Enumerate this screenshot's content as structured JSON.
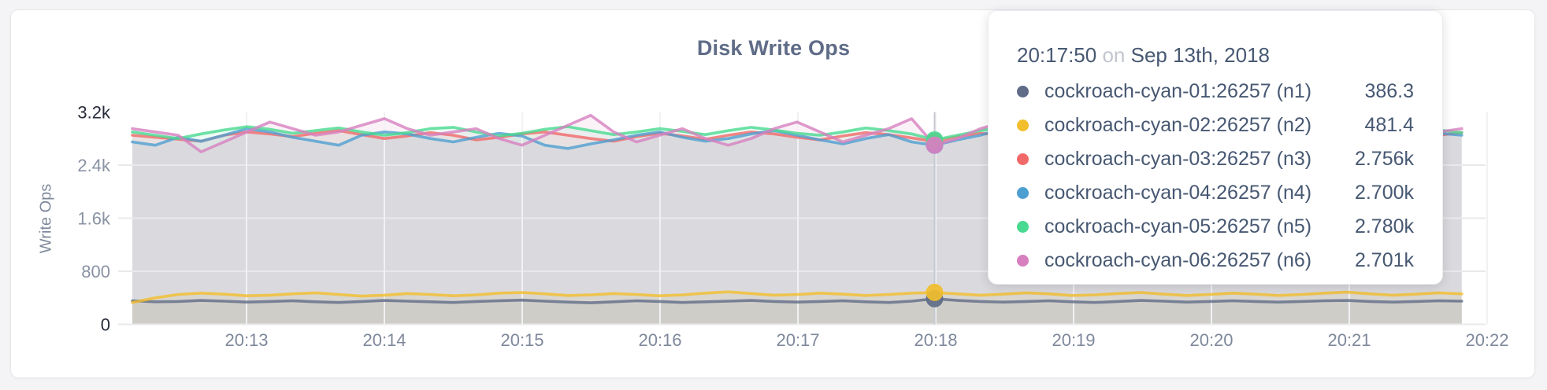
{
  "card": {
    "title": "Disk Write Ops"
  },
  "y_axis": {
    "title": "Write Ops"
  },
  "tooltip": {
    "time": "20:17:50",
    "connector": "on",
    "date": "Sep 13th, 2018",
    "rows": [
      {
        "label": "cockroach-cyan-01:26257 (n1)",
        "value": "386.3",
        "color": "#5F6C87"
      },
      {
        "label": "cockroach-cyan-02:26257 (n2)",
        "value": "481.4",
        "color": "#F2BE2C"
      },
      {
        "label": "cockroach-cyan-03:26257 (n3)",
        "value": "2.756k",
        "color": "#F16969"
      },
      {
        "label": "cockroach-cyan-04:26257 (n4)",
        "value": "2.700k",
        "color": "#4E9FD1"
      },
      {
        "label": "cockroach-cyan-05:26257 (n5)",
        "value": "2.780k",
        "color": "#49D990"
      },
      {
        "label": "cockroach-cyan-06:26257 (n6)",
        "value": "2.701k",
        "color": "#D77FBF"
      }
    ]
  },
  "chart_data": {
    "type": "line",
    "title": "Disk Write Ops",
    "xlabel": "",
    "ylabel": "Write Ops",
    "ylim": [
      0,
      3200
    ],
    "y_tick_values": [
      0,
      800,
      1600,
      2400,
      3200
    ],
    "y_ticks": [
      "0",
      "800",
      "1.6k",
      "2.4k",
      "3.2k"
    ],
    "x_ticks": [
      "20:13",
      "20:14",
      "20:15",
      "20:16",
      "20:17",
      "20:18",
      "20:19",
      "20:20",
      "20:21",
      "20:22"
    ],
    "sample_interval_seconds": 10,
    "grid": true,
    "legend_position": "tooltip",
    "hover_index": 35,
    "hover_time": "20:17:50",
    "line_opacity": 0.8,
    "fill_opacity": 0.1,
    "series": [
      {
        "name": "cockroach-cyan-01:26257 (n1)",
        "color": "#5F6C87",
        "hover_value": 386.3,
        "values": [
          355,
          340,
          345,
          360,
          350,
          335,
          345,
          355,
          340,
          330,
          345,
          360,
          350,
          340,
          330,
          345,
          355,
          365,
          350,
          335,
          325,
          340,
          355,
          345,
          330,
          340,
          350,
          360,
          345,
          335,
          345,
          355,
          340,
          330,
          350,
          386.3,
          360,
          345,
          335,
          345,
          355,
          340,
          330,
          345,
          360,
          350,
          335,
          345,
          355,
          345,
          335,
          345,
          355,
          360,
          345,
          335,
          345,
          355,
          350
        ]
      },
      {
        "name": "cockroach-cyan-02:26257 (n2)",
        "color": "#F2BE2C",
        "hover_value": 481.4,
        "values": [
          330,
          400,
          450,
          470,
          455,
          430,
          440,
          460,
          475,
          450,
          425,
          440,
          465,
          450,
          430,
          445,
          470,
          480,
          460,
          435,
          445,
          465,
          450,
          430,
          445,
          470,
          490,
          465,
          440,
          450,
          470,
          455,
          435,
          450,
          470,
          481.4,
          460,
          440,
          455,
          475,
          460,
          435,
          445,
          465,
          480,
          455,
          435,
          450,
          470,
          455,
          435,
          450,
          470,
          485,
          460,
          440,
          455,
          475,
          460
        ]
      },
      {
        "name": "cockroach-cyan-03:26257 (n3)",
        "color": "#F16969",
        "hover_value": 2756,
        "values": [
          2850,
          2820,
          2790,
          2760,
          2850,
          2900,
          2870,
          2830,
          2880,
          2920,
          2860,
          2800,
          2840,
          2890,
          2850,
          2780,
          2820,
          2870,
          2900,
          2850,
          2800,
          2760,
          2830,
          2880,
          2840,
          2790,
          2850,
          2900,
          2870,
          2820,
          2780,
          2840,
          2890,
          2860,
          2810,
          2756,
          2830,
          2880,
          2850,
          2800,
          2840,
          2890,
          2920,
          2860,
          2810,
          2850,
          2900,
          2870,
          2830,
          2880,
          2850,
          2800,
          2760,
          2820,
          2870,
          2840,
          2800,
          2850,
          2890
        ]
      },
      {
        "name": "cockroach-cyan-04:26257 (n4)",
        "color": "#4E9FD1",
        "hover_value": 2700,
        "values": [
          2750,
          2700,
          2820,
          2760,
          2850,
          2950,
          2900,
          2820,
          2760,
          2700,
          2850,
          2900,
          2870,
          2800,
          2750,
          2820,
          2880,
          2840,
          2700,
          2650,
          2720,
          2780,
          2850,
          2900,
          2820,
          2760,
          2800,
          2870,
          2920,
          2850,
          2780,
          2720,
          2800,
          2860,
          2750,
          2700,
          2780,
          2850,
          2950,
          2880,
          2800,
          2750,
          2820,
          2880,
          2930,
          2860,
          2780,
          2820,
          2870,
          2800,
          2750,
          2800,
          2860,
          2900,
          2840,
          2780,
          2830,
          2880,
          2850
        ]
      },
      {
        "name": "cockroach-cyan-05:26257 (n5)",
        "color": "#49D990",
        "hover_value": 2780,
        "values": [
          2900,
          2850,
          2800,
          2870,
          2930,
          2980,
          2940,
          2880,
          2920,
          2960,
          2900,
          2850,
          2890,
          2950,
          2970,
          2900,
          2840,
          2880,
          2940,
          2980,
          2920,
          2860,
          2900,
          2950,
          2910,
          2860,
          2920,
          2970,
          2930,
          2880,
          2850,
          2900,
          2960,
          2920,
          2870,
          2780,
          2850,
          2920,
          2970,
          3000,
          2940,
          2880,
          2920,
          2970,
          2930,
          2880,
          2930,
          2980,
          2940,
          2890,
          2850,
          2900,
          2950,
          2910,
          2870,
          2920,
          2960,
          2930,
          2890
        ]
      },
      {
        "name": "cockroach-cyan-06:26257 (n6)",
        "color": "#D77FBF",
        "hover_value": 2701,
        "values": [
          2950,
          2900,
          2850,
          2600,
          2750,
          2900,
          3050,
          2950,
          2850,
          2900,
          3000,
          3100,
          2950,
          2850,
          2900,
          2950,
          2800,
          2700,
          2850,
          3000,
          3150,
          2900,
          2750,
          2850,
          2950,
          2800,
          2700,
          2800,
          2950,
          3050,
          2900,
          2750,
          2850,
          2950,
          3100,
          2701,
          2800,
          2950,
          3050,
          2900,
          2800,
          2850,
          2950,
          3150,
          3000,
          2850,
          2750,
          2850,
          2950,
          2900,
          2800,
          2750,
          2850,
          2950,
          3050,
          2950,
          2850,
          2900,
          2950
        ]
      }
    ]
  },
  "colors": {
    "page_background": "#f4f4f6",
    "card_background": "#ffffff",
    "title_text": "#5F6C87",
    "tooltip_text": "#475872",
    "tooltip_connector_text": "#c2c6ce",
    "axis_tick_text": "#7f889b",
    "axis_tick_end_text": "#262c38"
  }
}
